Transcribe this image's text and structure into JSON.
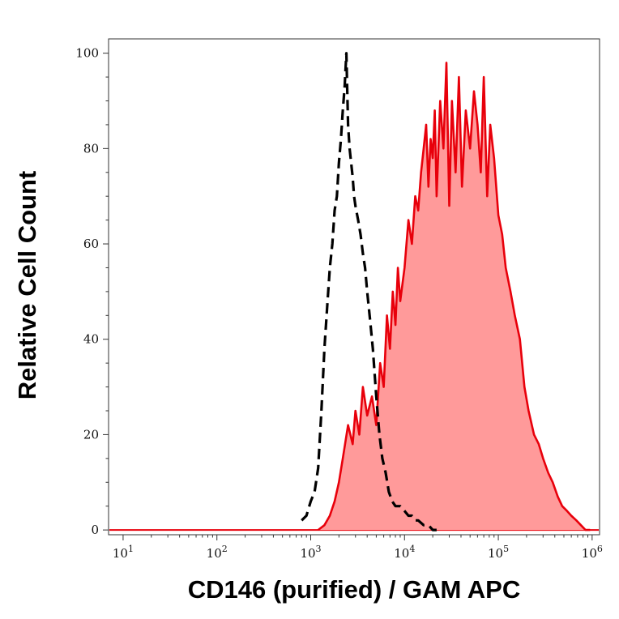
{
  "chart_data": {
    "type": "area",
    "title": "",
    "xlabel": "CD146 (purified) / GAM APC",
    "ylabel": "Relative Cell Count",
    "x_scale": "log",
    "xlim": [
      7,
      1200000
    ],
    "ylim": [
      -1,
      103
    ],
    "x_ticks": [
      {
        "value": 10,
        "base": "10",
        "exp": "1"
      },
      {
        "value": 100,
        "base": "10",
        "exp": "2"
      },
      {
        "value": 1000,
        "base": "10",
        "exp": "3"
      },
      {
        "value": 10000,
        "base": "10",
        "exp": "4"
      },
      {
        "value": 100000,
        "base": "10",
        "exp": "5"
      },
      {
        "value": 1000000,
        "base": "10",
        "exp": "6"
      }
    ],
    "y_ticks": [
      {
        "value": 0,
        "label": "0"
      },
      {
        "value": 20,
        "label": "20"
      },
      {
        "value": 40,
        "label": "40"
      },
      {
        "value": 60,
        "label": "60"
      },
      {
        "value": 80,
        "label": "80"
      },
      {
        "value": 100,
        "label": "100"
      }
    ],
    "grid": false,
    "legend": "none",
    "colors": {
      "stained_line": "#e8000b",
      "stained_fill": "#ff9a9a",
      "control_line": "#000000",
      "baseline": "#e8000b"
    },
    "series": [
      {
        "style": "dashed-black-line",
        "x": [
          800,
          900,
          1000,
          1100,
          1200,
          1300,
          1400,
          1500,
          1600,
          1700,
          1800,
          1900,
          2000,
          2100,
          2200,
          2300,
          2400,
          2500,
          2600,
          2700,
          2800,
          2900,
          3000,
          3200,
          3400,
          3600,
          3800,
          4000,
          4300,
          4600,
          5000,
          5400,
          5800,
          6300,
          6800,
          7400,
          8000,
          9000,
          10000,
          11000,
          12000,
          13000,
          14000,
          16000,
          18000,
          20000,
          22000
        ],
        "y": [
          2,
          3,
          6,
          8,
          13,
          25,
          38,
          47,
          55,
          60,
          67,
          70,
          77,
          82,
          88,
          93,
          100,
          85,
          80,
          77,
          74,
          70,
          68,
          65,
          62,
          58,
          55,
          50,
          44,
          38,
          28,
          20,
          15,
          12,
          8,
          6,
          5,
          5,
          4,
          3,
          3,
          2,
          2,
          1,
          1,
          0,
          0
        ]
      },
      {
        "style": "red-line-filled",
        "x": [
          1200,
          1400,
          1600,
          1800,
          2000,
          2200,
          2500,
          2800,
          3000,
          3300,
          3600,
          4000,
          4500,
          5000,
          5500,
          6000,
          6500,
          7000,
          7500,
          8000,
          8500,
          9000,
          10000,
          11000,
          12000,
          13000,
          14000,
          15000,
          16000,
          17000,
          18000,
          19000,
          20000,
          21000,
          22000,
          24000,
          26000,
          28000,
          30000,
          32000,
          35000,
          38000,
          41000,
          45000,
          50000,
          55000,
          60000,
          65000,
          70000,
          76000,
          82000,
          90000,
          100000,
          110000,
          120000,
          135000,
          150000,
          170000,
          190000,
          210000,
          240000,
          270000,
          300000,
          340000,
          380000,
          430000,
          480000,
          540000,
          600000,
          680000,
          760000,
          850000,
          950000
        ],
        "y": [
          0,
          1,
          3,
          6,
          10,
          15,
          22,
          18,
          25,
          20,
          30,
          24,
          28,
          22,
          35,
          30,
          45,
          38,
          50,
          43,
          55,
          48,
          55,
          65,
          60,
          70,
          67,
          75,
          80,
          85,
          72,
          82,
          78,
          88,
          70,
          90,
          80,
          98,
          68,
          90,
          75,
          95,
          72,
          88,
          80,
          92,
          85,
          75,
          95,
          70,
          85,
          78,
          66,
          62,
          55,
          50,
          45,
          40,
          30,
          25,
          20,
          18,
          15,
          12,
          10,
          7,
          5,
          4,
          3,
          2,
          1,
          0,
          0
        ]
      }
    ]
  }
}
